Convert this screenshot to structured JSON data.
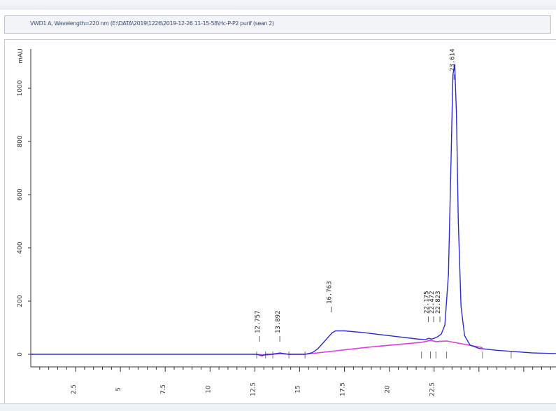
{
  "header": {
    "signal_title": "VWD1 A, Wavelength=220 nm (E:\\DATA\\2019\\1226\\2019-12-26 11-15-58\\Hc-P-P2 purif (sean 2)"
  },
  "chart_data": {
    "type": "line",
    "ylabel": "mAU",
    "xlim": [
      0,
      29.3
    ],
    "ylim": [
      -20,
      1150
    ],
    "x_ticks": [
      2.5,
      5,
      7.5,
      10,
      12.5,
      15,
      17.5,
      20,
      22.5
    ],
    "x_tick_labels": [
      "2.5",
      "5",
      "7.5",
      "10",
      "12.5",
      "15",
      "17.5",
      "20",
      "22.5"
    ],
    "y_ticks": [
      0,
      200,
      400,
      600,
      800,
      1000
    ],
    "y_tick_labels": [
      "0",
      "200",
      "400",
      "600",
      "800",
      "1000"
    ],
    "series": [
      {
        "color": "#2a2ad0",
        "x": [
          0,
          5,
          10,
          12.6,
          12.9,
          13.1,
          13.4,
          13.7,
          13.9,
          14.1,
          14.4,
          15.3,
          15.7,
          16.0,
          16.3,
          16.6,
          16.8,
          17.0,
          17.5,
          18.5,
          19.5,
          20.5,
          21.5,
          22.0,
          22.2,
          22.35,
          22.5,
          22.7,
          22.9,
          23.1,
          23.3,
          23.45,
          23.55,
          23.65,
          23.75,
          23.85,
          24.0,
          24.2,
          24.5,
          25,
          26,
          27,
          28,
          29.3
        ],
        "y": [
          0,
          0,
          0,
          0,
          -6,
          0,
          0,
          3,
          5,
          3,
          0,
          0,
          6,
          20,
          42,
          65,
          80,
          88,
          88,
          82,
          74,
          66,
          58,
          55,
          60,
          57,
          60,
          66,
          76,
          110,
          300,
          750,
          1050,
          1090,
          900,
          500,
          180,
          70,
          35,
          22,
          15,
          10,
          5,
          3
        ]
      },
      {
        "color": "#e23ae2",
        "x": [
          12.6,
          13.1,
          13.5,
          13.9,
          14.4,
          15.3,
          19.0,
          21.8,
          22.3,
          22.6,
          23.2,
          25.2
        ],
        "y": [
          0,
          -3,
          0,
          2,
          0,
          0,
          28,
          45,
          52,
          48,
          50,
          25
        ]
      }
    ],
    "peak_labels": [
      {
        "rt": 12.757,
        "text": "12.757"
      },
      {
        "rt": 13.892,
        "text": "13.892"
      },
      {
        "rt": 16.763,
        "text": "16.763"
      },
      {
        "rt": 22.175,
        "text": "22.175"
      },
      {
        "rt": 22.472,
        "text": "22.472"
      },
      {
        "rt": 22.823,
        "text": "22.823"
      },
      {
        "rt": 23.614,
        "text": "23.614"
      }
    ]
  }
}
